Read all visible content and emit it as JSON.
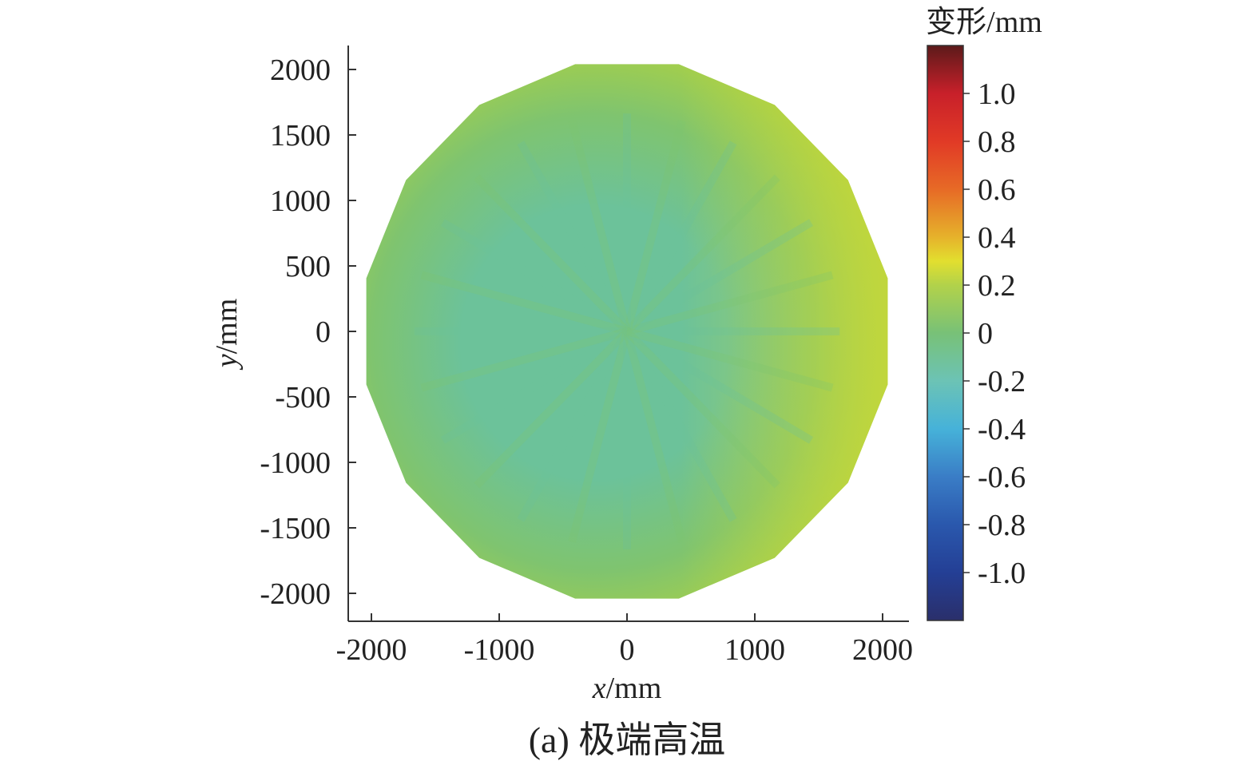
{
  "chart_data": {
    "type": "heatmap",
    "xlabel_var": "x",
    "xlabel_unit": "/mm",
    "ylabel_var": "y",
    "ylabel_unit": "/mm",
    "xlim": [
      -2100,
      2200
    ],
    "ylim": [
      -2200,
      2200
    ],
    "x_ticks": [
      -2000,
      -1000,
      0,
      1000,
      2000
    ],
    "y_ticks": [
      2000,
      1500,
      1000,
      500,
      0,
      -500,
      -1000,
      -1500,
      -2000
    ],
    "domain_shape": "regular 16-sided polygon",
    "domain_radius": 2080,
    "colorbar": {
      "title": "变形/mm",
      "range": [
        -1.2,
        1.2
      ],
      "ticks": [
        "1.0",
        "0.8",
        "0.6",
        "0.4",
        "0.2",
        "0",
        "-0.2",
        "-0.4",
        "-0.6",
        "-0.8",
        "-1.0"
      ],
      "tick_values": [
        1.0,
        0.8,
        0.6,
        0.4,
        0.2,
        0,
        -0.2,
        -0.4,
        -0.6,
        -0.8,
        -1.0
      ],
      "colormap_stops": [
        {
          "value": -1.2,
          "color": "#2a2f6b"
        },
        {
          "value": -1.0,
          "color": "#243f95"
        },
        {
          "value": -0.8,
          "color": "#2a58ad"
        },
        {
          "value": -0.6,
          "color": "#3a7dc6"
        },
        {
          "value": -0.4,
          "color": "#46b2d9"
        },
        {
          "value": -0.2,
          "color": "#6cc3b5"
        },
        {
          "value": 0.0,
          "color": "#78c177"
        },
        {
          "value": 0.2,
          "color": "#b2d24a"
        },
        {
          "value": 0.3,
          "color": "#e2df2f"
        },
        {
          "value": 0.4,
          "color": "#e6b22b"
        },
        {
          "value": 0.6,
          "color": "#e76a26"
        },
        {
          "value": 0.8,
          "color": "#e13a26"
        },
        {
          "value": 1.0,
          "color": "#c8202a"
        },
        {
          "value": 1.2,
          "color": "#5c1a1a"
        }
      ]
    },
    "field_colors": {
      "center": "#6cc29a",
      "middle": "#7fc46f",
      "rim": "#a9d046",
      "right_rim": "#c6d83a"
    },
    "caption": "(a) 极端高温"
  }
}
